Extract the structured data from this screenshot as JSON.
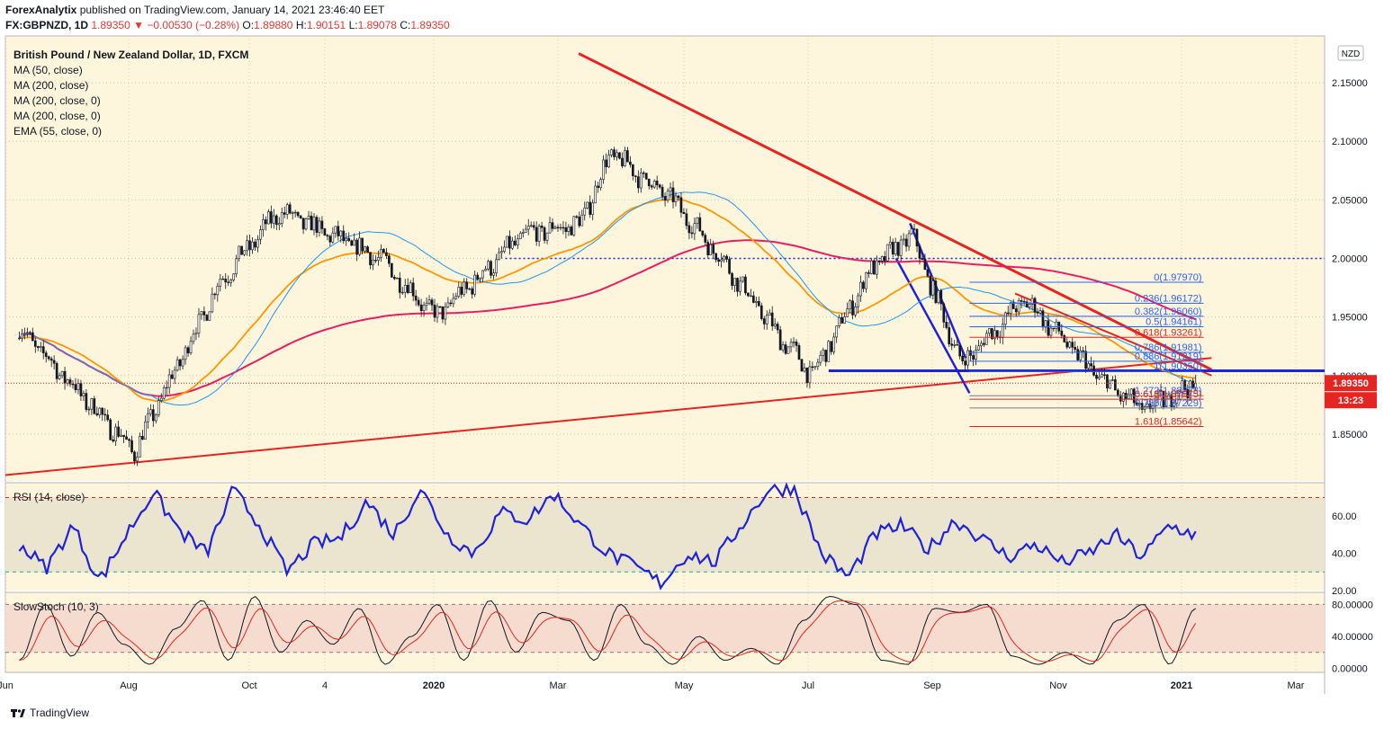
{
  "header": {
    "publisher": "ForexAnalytix",
    "published_text": "published on TradingView.com, January 14, 2021 23:46:40 EET",
    "symbol": "FX:GBPNZD, 1D",
    "last": "1.89350",
    "change": "−0.00530 (−0.28%)",
    "open_label": "O:",
    "open": "1.89880",
    "high_label": "H:",
    "high": "1.90151",
    "low_label": "L:",
    "low": "1.89078",
    "close_label": "C:",
    "close": "1.89350"
  },
  "legend": {
    "title": "British Pound / New Zealand Dollar, 1D, FXCM",
    "items": [
      "MA (50, close)",
      "MA (200, close)",
      "MA (200, close, 0)",
      "MA (200, close, 0)",
      "EMA (55, close, 0)"
    ]
  },
  "currency_badge": "NZD",
  "price_badge": "1.89350",
  "countdown_badge": "13:23",
  "rsi_label": "RSI (14, close)",
  "stoch_label": "SlowStoch (10, 3)",
  "footer": {
    "brand": "TradingView"
  },
  "colors": {
    "background": "#fdf5dc",
    "up_candle": "#ffffff",
    "down_candle": "#131722",
    "ma50": "#2196f3",
    "ma200": "#e91e63",
    "ema55": "#ff9800",
    "trendline": "#e52521",
    "blue_line": "#1e22d8",
    "rsi": "#1e22d8"
  },
  "chart_data": [
    {
      "type": "candlestick",
      "title": "British Pound / New Zealand Dollar, 1D, FXCM",
      "y_axis_ticks": [
        1.85,
        1.9,
        1.95,
        2.0,
        2.05,
        2.1,
        2.15
      ],
      "ylim": [
        1.81,
        2.19
      ],
      "x_axis_labels": [
        "Jun",
        "Aug",
        "Oct",
        "4",
        "2020",
        "Mar",
        "May",
        "Jul",
        "Sep",
        "Nov",
        "2021",
        "Mar"
      ],
      "anchor_closes": [
        {
          "date": "2019-06",
          "value": 1.94
        },
        {
          "date": "2019-07-29",
          "value": 1.835
        },
        {
          "date": "2019-09-10",
          "value": 1.98
        },
        {
          "date": "2019-10-10",
          "value": 2.04
        },
        {
          "date": "2019-11-30",
          "value": 2.0
        },
        {
          "date": "2019-12-28",
          "value": 1.95
        },
        {
          "date": "2020-02-10",
          "value": 2.02
        },
        {
          "date": "2020-03-10",
          "value": 2.03
        },
        {
          "date": "2020-03-25",
          "value": 2.09
        },
        {
          "date": "2020-04-25",
          "value": 2.05
        },
        {
          "date": "2020-05-20",
          "value": 2.0
        },
        {
          "date": "2020-06-15",
          "value": 1.94
        },
        {
          "date": "2020-07-05",
          "value": 1.9
        },
        {
          "date": "2020-08-03",
          "value": 1.99
        },
        {
          "date": "2020-08-24",
          "value": 2.02
        },
        {
          "date": "2020-09-18",
          "value": 1.91
        },
        {
          "date": "2020-10-20",
          "value": 1.965
        },
        {
          "date": "2020-11-25",
          "value": 1.9
        },
        {
          "date": "2020-12-18",
          "value": 1.87
        },
        {
          "date": "2021-01-14",
          "value": 1.8935
        }
      ],
      "horizontal_levels": [
        2.0
      ],
      "fibonacci_levels": [
        {
          "label": "0(1.97970)",
          "value": 1.9797
        },
        {
          "label": "0.236(1.96172)",
          "value": 1.96172
        },
        {
          "label": "0.382(1.95060)",
          "value": 1.9506
        },
        {
          "label": "0.5(1.94161)",
          "value": 1.94161
        },
        {
          "label": "0.618(1.93261)",
          "value": 1.93261
        },
        {
          "label": "0.786(1.91981)",
          "value": 1.91981
        },
        {
          "label": "0.886(1.91219)",
          "value": 1.91219
        },
        {
          "label": "1(1.90350)",
          "value": 1.9035
        },
        {
          "label": "1.272(1.88278)",
          "value": 1.88278
        },
        {
          "label": "0.618(1.87975)",
          "value": 1.87975
        },
        {
          "label": "0.786(1.87229)",
          "value": 1.87229
        },
        {
          "label": "1.618(1.85642)",
          "value": 1.85642
        }
      ],
      "last_price": 1.8935
    },
    {
      "type": "line",
      "name": "RSI (14, close)",
      "y_axis_ticks": [
        20,
        40,
        60
      ],
      "ylim": [
        20,
        78
      ],
      "levels": [
        70,
        30
      ],
      "anchors": [
        45,
        32,
        55,
        25,
        50,
        73,
        52,
        40,
        74,
        55,
        30,
        45,
        48,
        68,
        50,
        75,
        50,
        40,
        62,
        58,
        72,
        55,
        40,
        33,
        24,
        40,
        35,
        55,
        74,
        75,
        40,
        27,
        50,
        55,
        42,
        58,
        48,
        38,
        45,
        35,
        40,
        50,
        38,
        55,
        50
      ]
    },
    {
      "type": "line",
      "name": "SlowStoch (10, 3)",
      "y_axis_ticks": [
        0.0,
        40.0,
        80.0
      ],
      "y_tick_labels": [
        "0.00000",
        "40.00000",
        "80.00000"
      ],
      "ylim": [
        -5,
        95
      ],
      "levels": [
        80,
        20
      ],
      "anchors": [
        10,
        80,
        15,
        70,
        30,
        5,
        50,
        85,
        10,
        90,
        20,
        60,
        30,
        75,
        5,
        40,
        80,
        10,
        85,
        20,
        70,
        60,
        10,
        80,
        30,
        5,
        40,
        10,
        25,
        5,
        60,
        90,
        80,
        10,
        5,
        75,
        70,
        80,
        15,
        5,
        20,
        5,
        60,
        80,
        5,
        75
      ]
    }
  ]
}
